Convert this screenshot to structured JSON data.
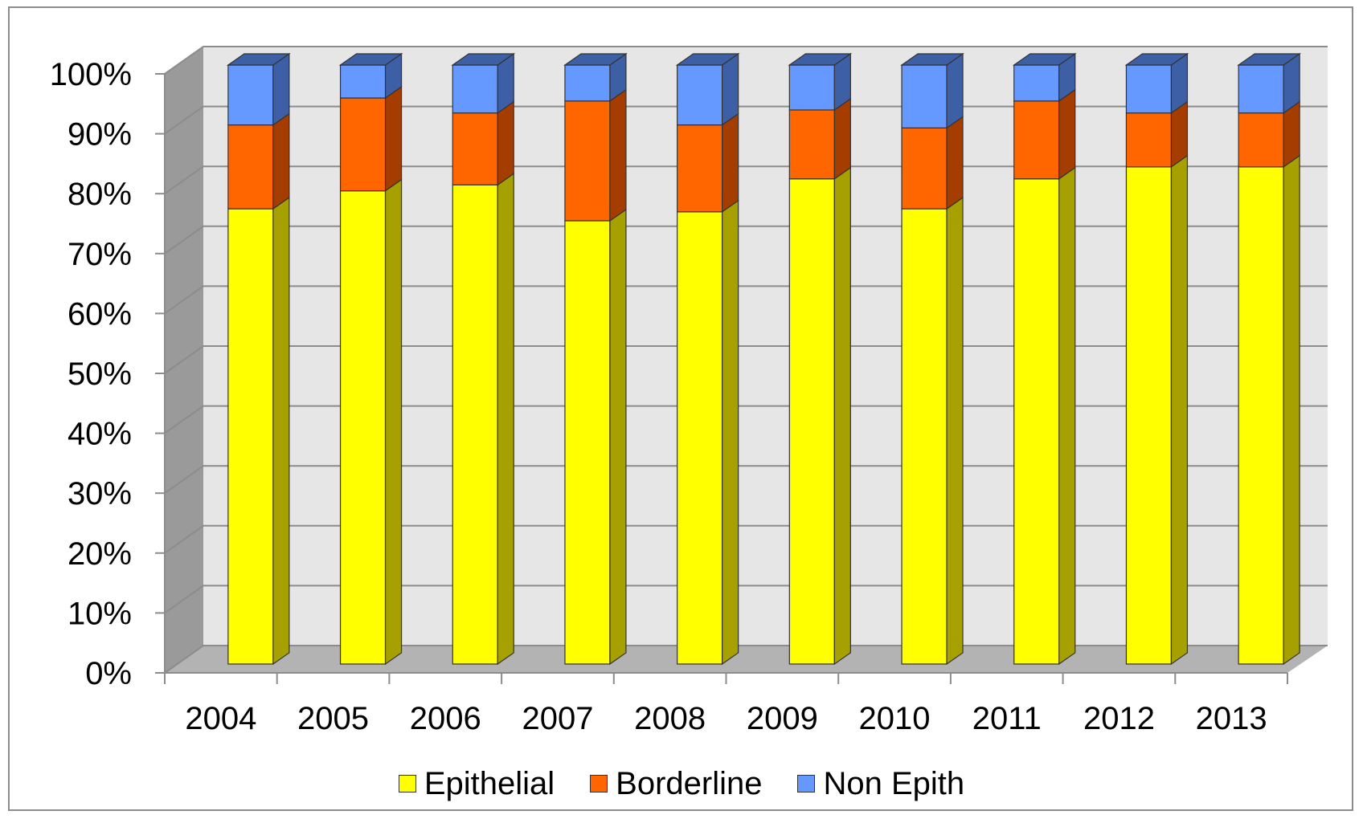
{
  "chart_data": {
    "type": "bar",
    "stacked": true,
    "three_d": true,
    "categories": [
      "2004",
      "2005",
      "2006",
      "2007",
      "2008",
      "2009",
      "2010",
      "2011",
      "2012",
      "2013"
    ],
    "series": [
      {
        "name": "Epithelial",
        "color": "#FFFF00",
        "side_color": "#A6A000",
        "values": [
          76,
          79,
          80,
          74,
          75.5,
          81,
          76,
          81,
          83,
          83
        ]
      },
      {
        "name": "Borderline",
        "color": "#FF6600",
        "side_color": "#A63D00",
        "values": [
          14,
          15.5,
          12,
          20,
          14.5,
          11.5,
          13.5,
          13,
          9,
          9
        ]
      },
      {
        "name": "Non Epith",
        "color": "#6699FF",
        "side_color": "#3D5FA6",
        "values": [
          10,
          5.5,
          8,
          6,
          10,
          7.5,
          10.5,
          6,
          8,
          8
        ]
      }
    ],
    "y_ticks": [
      "0%",
      "10%",
      "20%",
      "30%",
      "40%",
      "50%",
      "60%",
      "70%",
      "80%",
      "90%",
      "100%"
    ],
    "ylim": [
      0,
      100
    ],
    "y_format": "percent",
    "grid": true,
    "legend_position": "bottom",
    "title": "",
    "xlabel": "",
    "ylabel": ""
  }
}
